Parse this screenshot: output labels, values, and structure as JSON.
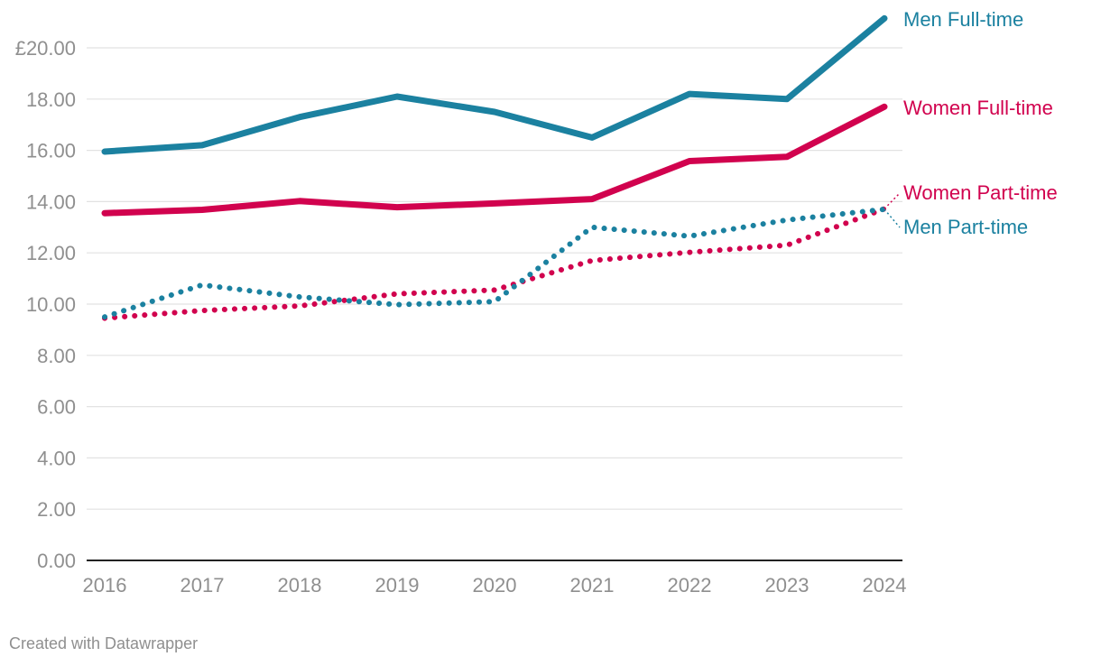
{
  "chart_data": {
    "type": "line",
    "title": "",
    "xlabel": "",
    "ylabel": "",
    "x": [
      "2016",
      "2017",
      "2018",
      "2019",
      "2020",
      "2021",
      "2022",
      "2023",
      "2024"
    ],
    "ylim": [
      0,
      21
    ],
    "y_ticks": [
      {
        "value": 0,
        "label": "0.00"
      },
      {
        "value": 2,
        "label": "2.00"
      },
      {
        "value": 4,
        "label": "4.00"
      },
      {
        "value": 6,
        "label": "6.00"
      },
      {
        "value": 8,
        "label": "8.00"
      },
      {
        "value": 10,
        "label": "10.00"
      },
      {
        "value": 12,
        "label": "12.00"
      },
      {
        "value": 14,
        "label": "14.00"
      },
      {
        "value": 16,
        "label": "16.00"
      },
      {
        "value": 18,
        "label": "18.00"
      },
      {
        "value": 20,
        "label": "£20.00"
      }
    ],
    "grid": true,
    "legend": "direct labels at right end of lines",
    "series": [
      {
        "key": "men-full-time",
        "name": "Men Full-time",
        "color": "#1b81a0",
        "style": "solid",
        "values": [
          15.95,
          16.2,
          17.3,
          18.1,
          17.5,
          16.5,
          18.2,
          18.0,
          21.15
        ]
      },
      {
        "key": "women-full-time",
        "name": "Women Full-time",
        "color": "#d1024e",
        "style": "solid",
        "values": [
          13.55,
          13.68,
          14.02,
          13.78,
          13.93,
          14.1,
          15.58,
          15.75,
          17.7
        ]
      },
      {
        "key": "women-part-time",
        "name": "Women Part-time",
        "color": "#d1024e",
        "style": "dotted",
        "values": [
          9.45,
          9.75,
          9.93,
          10.4,
          10.55,
          11.7,
          12.02,
          12.3,
          13.72
        ]
      },
      {
        "key": "men-part-time",
        "name": "Men Part-time",
        "color": "#1b81a0",
        "style": "dotted",
        "values": [
          9.5,
          10.75,
          10.28,
          9.98,
          10.1,
          13.0,
          12.65,
          13.28,
          13.7
        ]
      }
    ]
  },
  "footer": {
    "credit": "Created with Datawrapper"
  }
}
